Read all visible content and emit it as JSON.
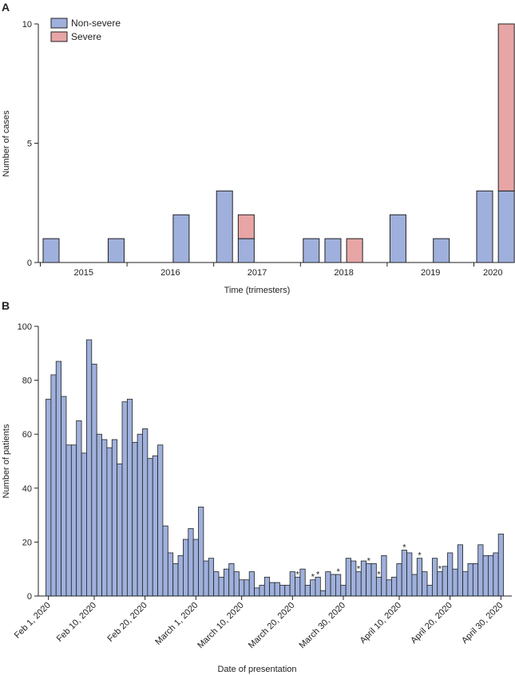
{
  "chart_data": [
    {
      "type": "bar",
      "panel": "A",
      "stacked": true,
      "xlabel": "Time (trimesters)",
      "ylabel": "Number of cases",
      "ylim": [
        0,
        10
      ],
      "yticks": [
        "0",
        "5",
        "10"
      ],
      "year_labels": [
        "2015",
        "2016",
        "2017",
        "2018",
        "2019",
        "2020"
      ],
      "legend": {
        "position": "top-left",
        "entries": [
          "Non-severe",
          "Severe"
        ]
      },
      "series": [
        {
          "name": "Non-severe",
          "color": "#9fb0dc",
          "values": [
            1,
            0,
            0,
            1,
            0,
            0,
            2,
            0,
            3,
            1,
            0,
            0,
            1,
            1,
            0,
            0,
            2,
            0,
            1,
            0,
            3,
            3
          ]
        },
        {
          "name": "Severe",
          "color": "#e8a5a5",
          "values": [
            0,
            0,
            0,
            0,
            0,
            0,
            0,
            0,
            0,
            1,
            0,
            0,
            0,
            0,
            1,
            0,
            0,
            0,
            0,
            0,
            0,
            7
          ]
        }
      ]
    },
    {
      "type": "bar",
      "panel": "B",
      "xlabel": "Date of presentation",
      "ylabel": "Number of patients",
      "ylim": [
        0,
        100
      ],
      "yticks": [
        "0",
        "20",
        "40",
        "60",
        "80",
        "100"
      ],
      "xticks": [
        "Feb 1, 2020",
        "Feb 10, 2020",
        "Feb 20, 2020",
        "March 1, 2020",
        "March 10, 2020",
        "March 20, 2020",
        "March 30, 2020",
        "April 10, 2020",
        "April 20, 2020",
        "April 30, 2020"
      ],
      "bar_color": "#9fb0dc",
      "star_symbol": "*",
      "values": [
        73,
        82,
        87,
        74,
        56,
        56,
        65,
        53,
        95,
        86,
        60,
        58,
        55,
        58,
        49,
        72,
        73,
        57,
        60,
        62,
        51,
        52,
        56,
        26,
        16,
        12,
        15,
        21,
        25,
        21,
        33,
        13,
        14,
        9,
        7,
        10,
        12,
        9,
        6,
        6,
        9,
        3,
        4,
        7,
        5,
        5,
        4,
        4,
        9,
        7,
        10,
        4,
        6,
        7,
        2,
        9,
        8,
        8,
        4,
        14,
        13,
        9,
        13,
        12,
        12,
        7,
        15,
        6,
        7,
        12,
        17,
        16,
        8,
        14,
        9,
        4,
        14,
        9,
        11,
        16,
        10,
        19,
        9,
        12,
        12,
        19,
        15,
        15,
        16,
        23
      ],
      "stars": [
        49,
        52,
        53,
        57,
        61,
        63,
        65,
        70,
        73,
        77
      ]
    }
  ]
}
